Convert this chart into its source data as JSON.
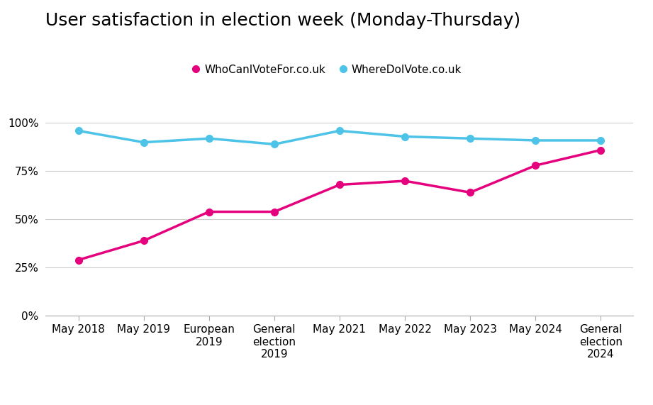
{
  "title": "User satisfaction in election week (Monday-Thursday)",
  "x_labels": [
    "May 2018",
    "May 2019",
    "European\n2019",
    "General\nelection\n2019",
    "May 2021",
    "May 2022",
    "May 2023",
    "May 2024",
    "General\nelection\n2024"
  ],
  "whocanivotefor": [
    0.29,
    0.39,
    0.54,
    0.54,
    0.68,
    0.7,
    0.64,
    0.78,
    0.86
  ],
  "wheredoivote": [
    0.96,
    0.9,
    0.92,
    0.89,
    0.96,
    0.93,
    0.92,
    0.91,
    0.91
  ],
  "color_who": "#e5007d",
  "color_where": "#4dc3e8",
  "legend_who": "WhoCanIVoteFor.co.uk",
  "legend_where": "WhereDoIVote.co.uk",
  "ylim": [
    0,
    1.05
  ],
  "yticks": [
    0,
    0.25,
    0.5,
    0.75,
    1.0
  ],
  "ytick_labels": [
    "0%",
    "25%",
    "50%",
    "75%",
    "100%"
  ],
  "title_fontsize": 18,
  "legend_fontsize": 11,
  "tick_fontsize": 11,
  "background_color": "#ffffff",
  "grid_color": "#cccccc",
  "markersize": 7,
  "linewidth": 2.5
}
